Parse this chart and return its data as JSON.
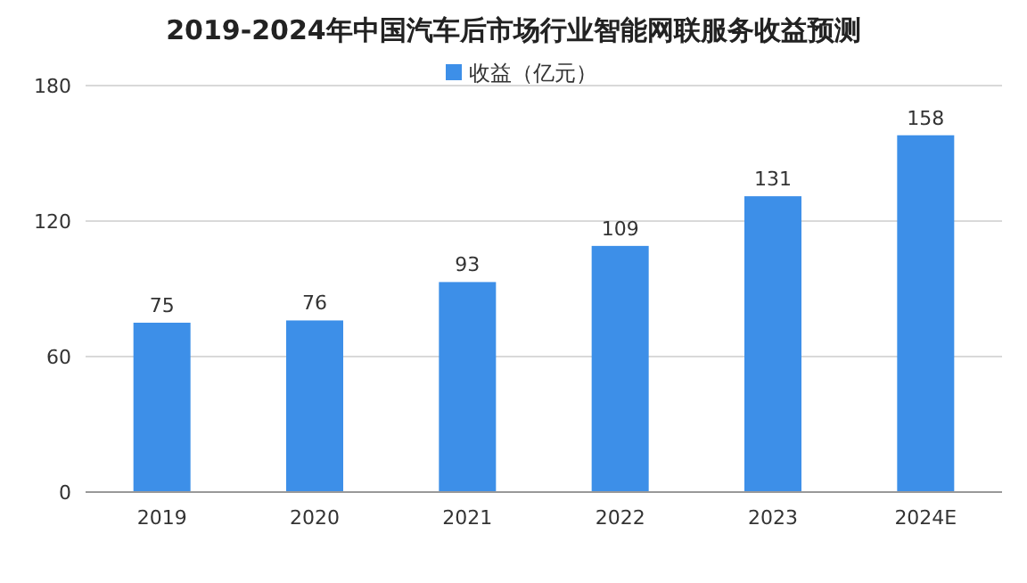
{
  "chart_data": {
    "type": "bar",
    "title": "2019-2024年中国汽车后市场行业智能网联服务收益预测",
    "categories": [
      "2019",
      "2020",
      "2021",
      "2022",
      "2023",
      "2024E"
    ],
    "series": [
      {
        "name": "收益（亿元）",
        "color": "#3d8fe8",
        "values": [
          75,
          76,
          93,
          109,
          131,
          158
        ]
      }
    ],
    "ylim": [
      0,
      180
    ],
    "yticks": [
      0,
      60,
      120,
      180
    ],
    "grid": "y",
    "legend": "top",
    "data_labels": true
  }
}
